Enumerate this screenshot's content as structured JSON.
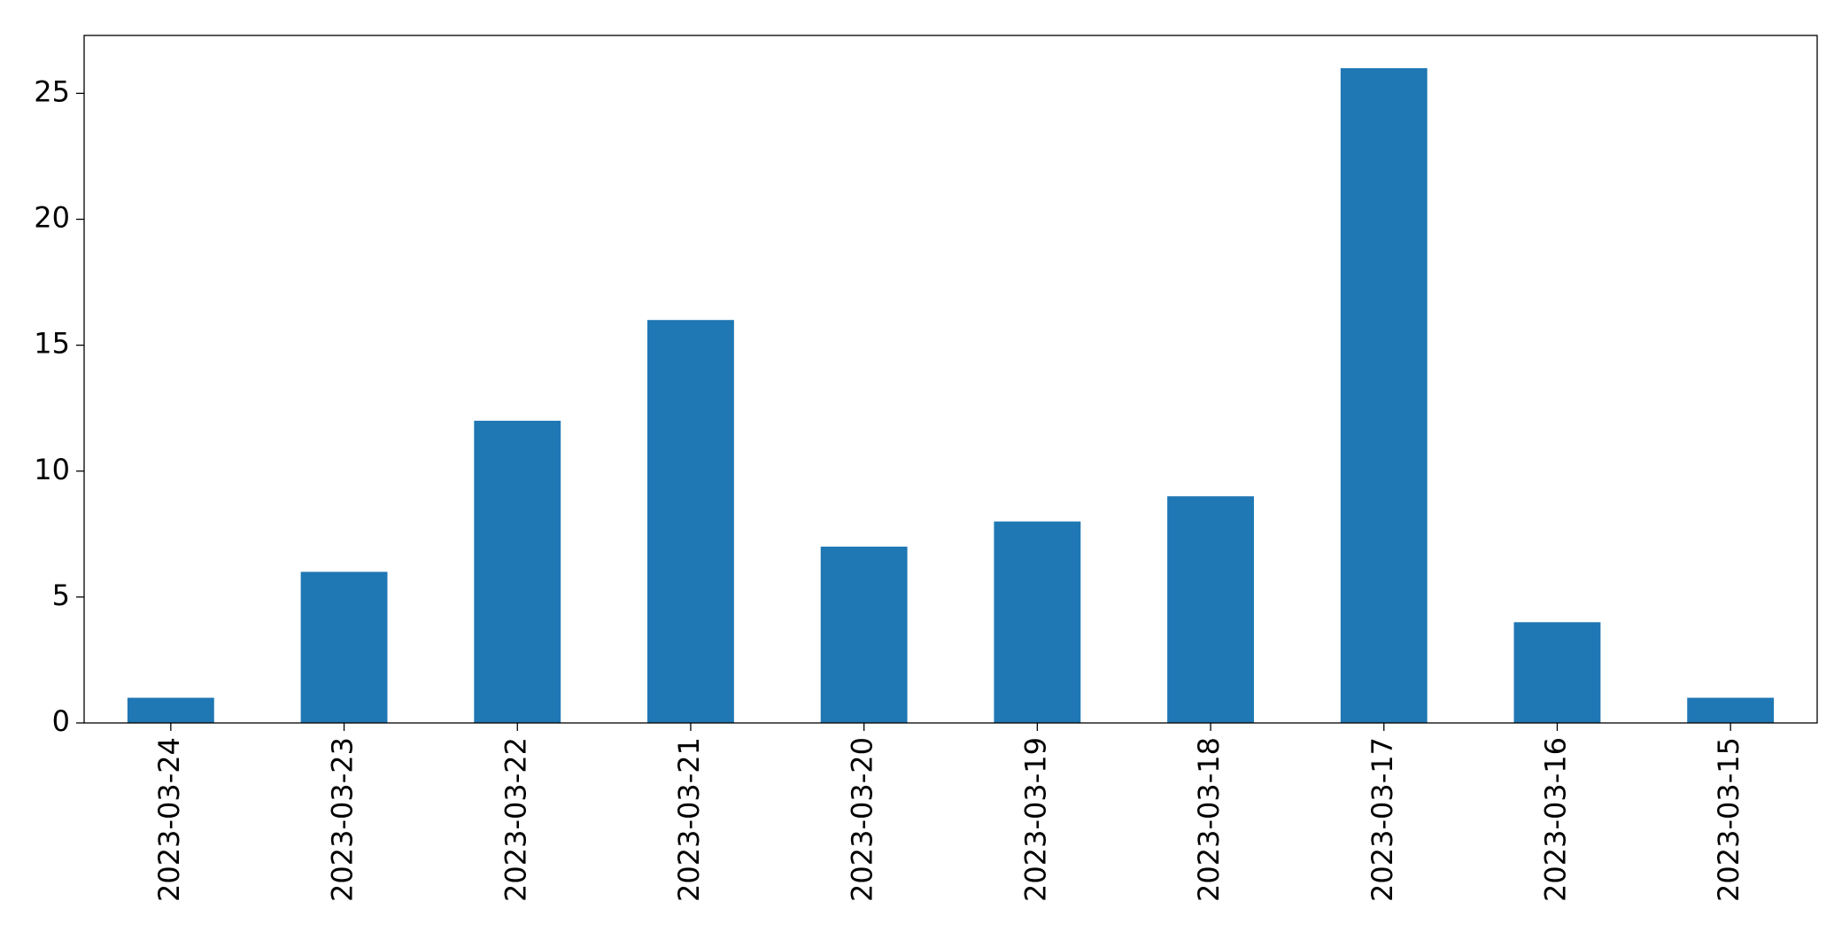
{
  "chart_data": {
    "type": "bar",
    "categories": [
      "2023-03-24",
      "2023-03-23",
      "2023-03-22",
      "2023-03-21",
      "2023-03-20",
      "2023-03-19",
      "2023-03-18",
      "2023-03-17",
      "2023-03-16",
      "2023-03-15"
    ],
    "values": [
      1,
      6,
      12,
      16,
      7,
      8,
      9,
      26,
      4,
      1
    ],
    "color": "#1f77b4",
    "ylim": [
      0,
      27.3
    ],
    "yticks": [
      0,
      5,
      10,
      15,
      20,
      25
    ],
    "grid": false
  }
}
